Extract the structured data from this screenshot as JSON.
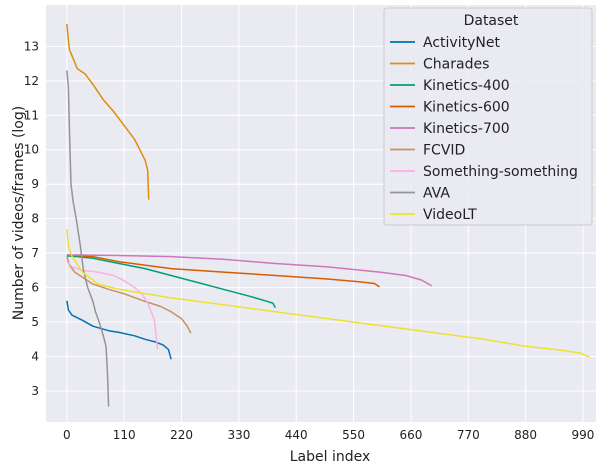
{
  "chart_data": {
    "type": "line",
    "title": "",
    "xlabel": "Label index",
    "ylabel": "Number of videos/frames (log)",
    "xlim": [
      -40,
      1015
    ],
    "ylim": [
      2.1,
      14.2
    ],
    "x_ticks": [
      0,
      110,
      220,
      330,
      440,
      550,
      660,
      770,
      880,
      990
    ],
    "y_ticks": [
      3,
      4,
      5,
      6,
      7,
      8,
      9,
      10,
      11,
      12,
      13
    ],
    "grid": true,
    "legend": {
      "title": "Dataset",
      "position": "top-right"
    },
    "series": [
      {
        "name": "ActivityNet",
        "color": "#0173b2",
        "points": [
          [
            0,
            5.62
          ],
          [
            3,
            5.35
          ],
          [
            10,
            5.2
          ],
          [
            30,
            5.05
          ],
          [
            50,
            4.88
          ],
          [
            80,
            4.75
          ],
          [
            100,
            4.7
          ],
          [
            130,
            4.6
          ],
          [
            150,
            4.5
          ],
          [
            170,
            4.42
          ],
          [
            185,
            4.33
          ],
          [
            195,
            4.2
          ],
          [
            200,
            3.92
          ]
        ]
      },
      {
        "name": "Charades",
        "color": "#de8f05",
        "points": [
          [
            0,
            13.65
          ],
          [
            2,
            13.3
          ],
          [
            5,
            12.9
          ],
          [
            12,
            12.65
          ],
          [
            20,
            12.35
          ],
          [
            35,
            12.2
          ],
          [
            50,
            11.9
          ],
          [
            70,
            11.45
          ],
          [
            90,
            11.1
          ],
          [
            110,
            10.7
          ],
          [
            130,
            10.3
          ],
          [
            140,
            10.0
          ],
          [
            150,
            9.7
          ],
          [
            155,
            9.4
          ],
          [
            157,
            8.55
          ]
        ]
      },
      {
        "name": "Kinetics-400",
        "color": "#029e73",
        "points": [
          [
            0,
            6.92
          ],
          [
            20,
            6.9
          ],
          [
            50,
            6.85
          ],
          [
            100,
            6.7
          ],
          [
            150,
            6.55
          ],
          [
            200,
            6.35
          ],
          [
            250,
            6.15
          ],
          [
            300,
            5.95
          ],
          [
            350,
            5.75
          ],
          [
            380,
            5.62
          ],
          [
            395,
            5.55
          ],
          [
            400,
            5.42
          ]
        ]
      },
      {
        "name": "Kinetics-600",
        "color": "#d55e00",
        "points": [
          [
            0,
            6.95
          ],
          [
            50,
            6.9
          ],
          [
            100,
            6.75
          ],
          [
            200,
            6.55
          ],
          [
            300,
            6.45
          ],
          [
            400,
            6.35
          ],
          [
            500,
            6.25
          ],
          [
            560,
            6.17
          ],
          [
            590,
            6.12
          ],
          [
            600,
            6.02
          ]
        ]
      },
      {
        "name": "Kinetics-700",
        "color": "#cc78bc",
        "points": [
          [
            0,
            6.95
          ],
          [
            100,
            6.93
          ],
          [
            200,
            6.9
          ],
          [
            300,
            6.82
          ],
          [
            400,
            6.7
          ],
          [
            500,
            6.6
          ],
          [
            600,
            6.45
          ],
          [
            650,
            6.35
          ],
          [
            680,
            6.22
          ],
          [
            700,
            6.05
          ]
        ]
      },
      {
        "name": "FCVID",
        "color": "#ca9161",
        "points": [
          [
            0,
            6.9
          ],
          [
            5,
            6.65
          ],
          [
            15,
            6.45
          ],
          [
            30,
            6.3
          ],
          [
            50,
            6.1
          ],
          [
            80,
            5.95
          ],
          [
            110,
            5.82
          ],
          [
            150,
            5.6
          ],
          [
            180,
            5.45
          ],
          [
            200,
            5.3
          ],
          [
            220,
            5.1
          ],
          [
            230,
            4.9
          ],
          [
            238,
            4.68
          ]
        ]
      },
      {
        "name": "Something-something",
        "color": "#fbafe4",
        "points": [
          [
            0,
            6.75
          ],
          [
            10,
            6.6
          ],
          [
            30,
            6.5
          ],
          [
            60,
            6.45
          ],
          [
            90,
            6.35
          ],
          [
            110,
            6.2
          ],
          [
            130,
            6.0
          ],
          [
            145,
            5.8
          ],
          [
            155,
            5.55
          ],
          [
            162,
            5.3
          ],
          [
            168,
            5.05
          ],
          [
            172,
            4.5
          ],
          [
            174,
            4.2
          ]
        ]
      },
      {
        "name": "AVA",
        "color": "#949494",
        "points": [
          [
            0,
            12.3
          ],
          [
            3,
            11.8
          ],
          [
            5,
            10.5
          ],
          [
            8,
            9.0
          ],
          [
            12,
            8.5
          ],
          [
            18,
            8.0
          ],
          [
            25,
            7.3
          ],
          [
            32,
            6.5
          ],
          [
            40,
            6.0
          ],
          [
            50,
            5.6
          ],
          [
            55,
            5.3
          ],
          [
            62,
            5.0
          ],
          [
            70,
            4.6
          ],
          [
            75,
            4.3
          ],
          [
            78,
            3.5
          ],
          [
            80,
            2.55
          ]
        ]
      },
      {
        "name": "VideoLT",
        "color": "#ece133",
        "points": [
          [
            0,
            7.7
          ],
          [
            3,
            7.2
          ],
          [
            10,
            6.9
          ],
          [
            30,
            6.45
          ],
          [
            60,
            6.1
          ],
          [
            100,
            5.95
          ],
          [
            200,
            5.7
          ],
          [
            300,
            5.5
          ],
          [
            400,
            5.3
          ],
          [
            500,
            5.1
          ],
          [
            600,
            4.9
          ],
          [
            700,
            4.7
          ],
          [
            800,
            4.5
          ],
          [
            880,
            4.3
          ],
          [
            950,
            4.18
          ],
          [
            985,
            4.1
          ],
          [
            1002,
            3.98
          ]
        ]
      }
    ]
  }
}
